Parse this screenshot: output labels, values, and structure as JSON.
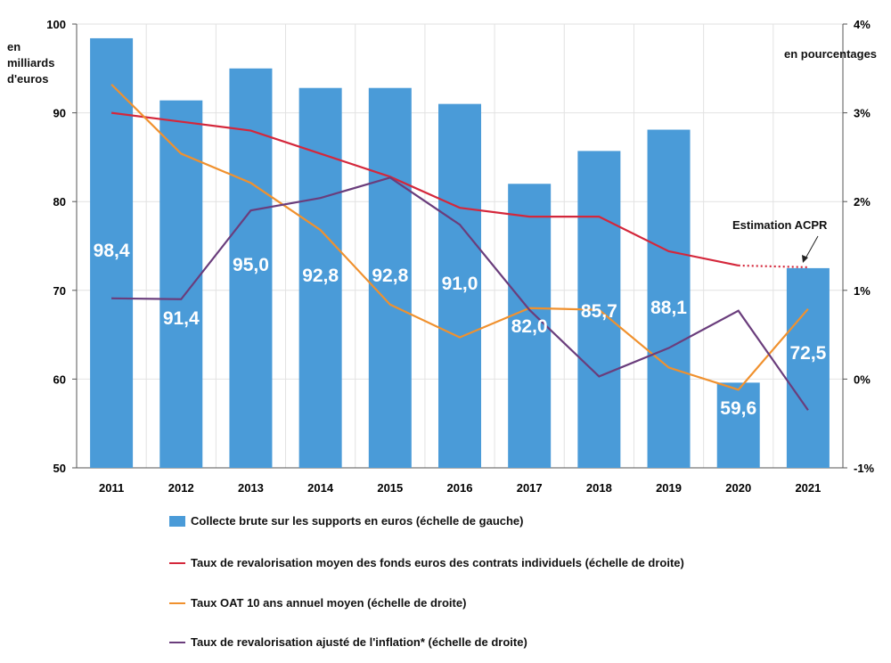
{
  "chart_data": {
    "type": "bar+line",
    "categories": [
      "2011",
      "2012",
      "2013",
      "2014",
      "2015",
      "2016",
      "2017",
      "2018",
      "2019",
      "2020",
      "2021"
    ],
    "left_axis": {
      "label": "en milliards d'euros",
      "ylim": [
        50,
        100
      ],
      "ticks": [
        "50",
        "60",
        "70",
        "80",
        "90",
        "100"
      ]
    },
    "right_axis": {
      "label": "en pourcentages",
      "ylim": [
        -1,
        4
      ],
      "ticks": [
        "-1%",
        "0%",
        "1%",
        "2%",
        "3%",
        "4%"
      ]
    },
    "grid": true,
    "legend_placement": "bottom",
    "annotation": "Estimation  ACPR",
    "series": [
      {
        "name": "Collecte brute sur les supports en euros (échelle de gauche)",
        "type": "bar",
        "axis": "left",
        "color": "#4a9bd8",
        "values": [
          98.4,
          91.4,
          95.0,
          92.8,
          92.8,
          91.0,
          82.0,
          85.7,
          88.1,
          59.6,
          72.5
        ],
        "labels": [
          "98,4",
          "91,4",
          "95,0",
          "92,8",
          "92,8",
          "91,0",
          "82,0",
          "85,7",
          "88,1",
          "59,6",
          "72,5"
        ]
      },
      {
        "name": "Taux de revalorisation moyen des fonds euros des contrats individuels (échelle de droite)",
        "type": "line",
        "axis": "right",
        "color": "#d4273b",
        "values": [
          3.0,
          2.9,
          2.8,
          2.54,
          2.28,
          1.93,
          1.83,
          1.83,
          1.44,
          1.28,
          1.26
        ],
        "dotted_from_index": 9
      },
      {
        "name": "Taux OAT 10 ans annuel moyen (échelle de droite)",
        "type": "line",
        "axis": "right",
        "color": "#f0912e",
        "values": [
          3.32,
          2.54,
          2.21,
          1.68,
          0.84,
          0.47,
          0.8,
          0.78,
          0.13,
          -0.12,
          0.79
        ]
      },
      {
        "name": "Taux de revalorisation ajusté de l'inflation* (échelle de droite)",
        "type": "line",
        "axis": "right",
        "color": "#6a3d7c",
        "values": [
          0.91,
          0.9,
          1.9,
          2.04,
          2.27,
          1.74,
          0.78,
          0.03,
          0.35,
          0.77,
          -0.35
        ]
      }
    ]
  }
}
